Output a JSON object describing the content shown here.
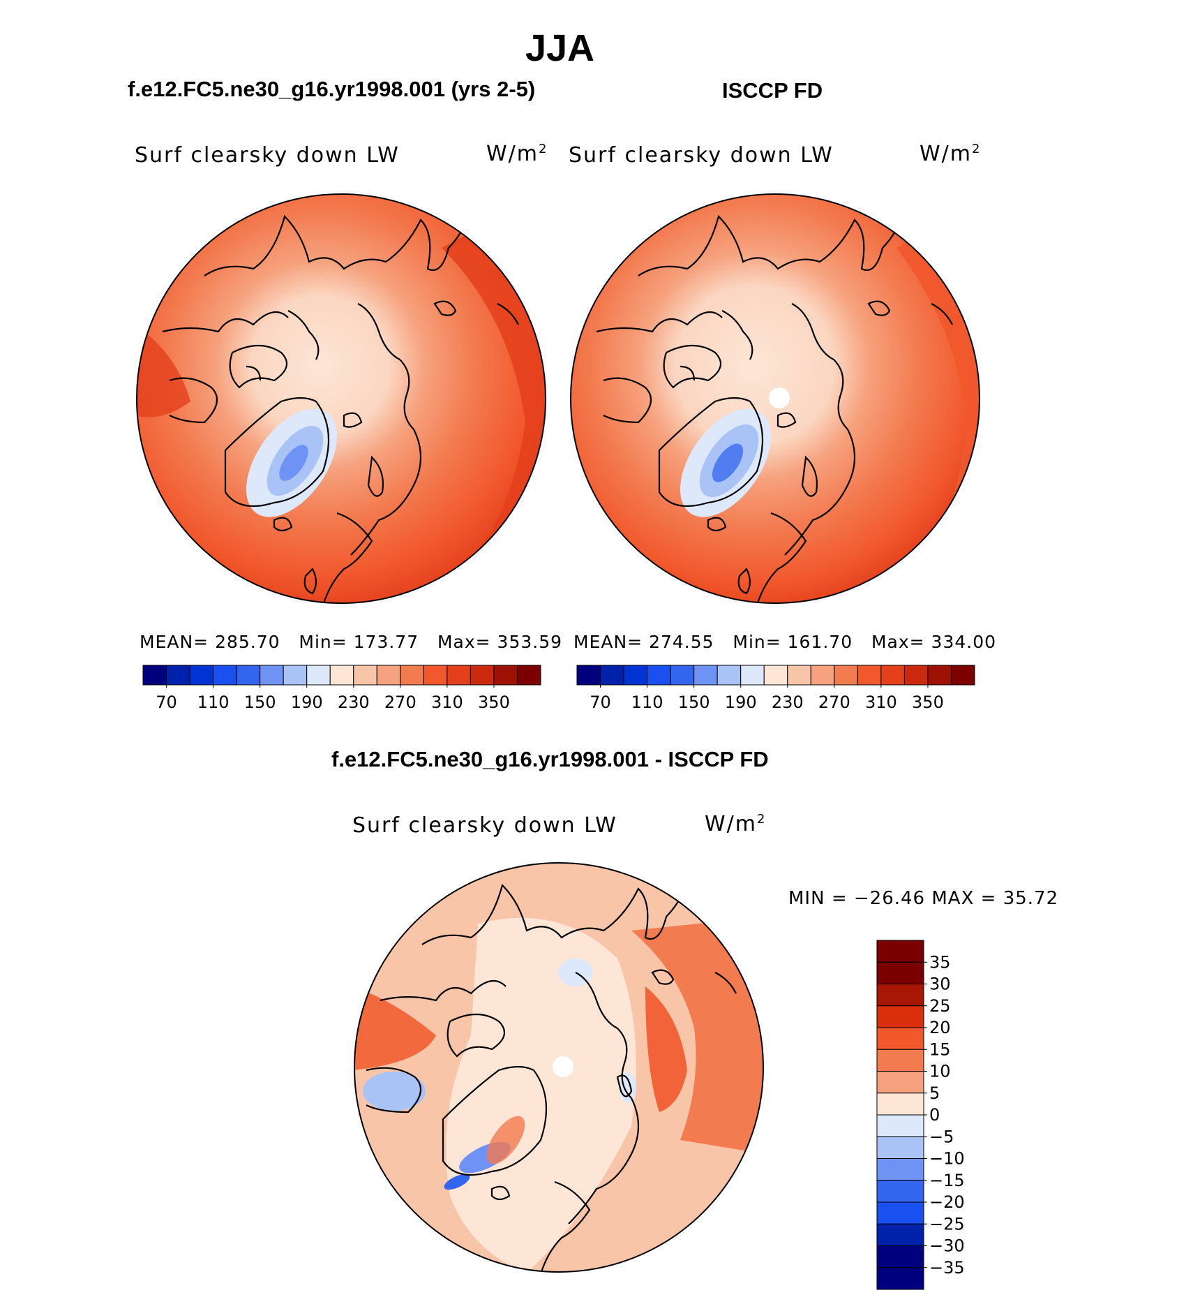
{
  "main_title": "JJA",
  "panels": [
    {
      "title": "f.e12.FC5.ne30_g16.yr1998.001 (yrs 2-5)",
      "variable": "Surf clearsky down LW",
      "units": "W/m2",
      "stats": {
        "mean": "MEAN= 285.70",
        "min": "Min= 173.77",
        "max": "Max= 353.59"
      }
    },
    {
      "title": "ISCCP FD",
      "variable": "Surf clearsky down LW",
      "units": "W/m2",
      "stats": {
        "mean": "MEAN= 274.55",
        "min": "Min= 161.70",
        "max": "Max= 334.00"
      }
    }
  ],
  "diff_panel": {
    "title": "f.e12.FC5.ne30_g16.yr1998.001 - ISCCP FD",
    "variable": "Surf clearsky down LW",
    "units": "W/m2",
    "stats": "MIN = −26.46 MAX =   35.72"
  },
  "colorbar_abs": {
    "colors": [
      "#00007f",
      "#0022aa",
      "#0033d4",
      "#1a4ff0",
      "#3366ee",
      "#6f93f5",
      "#a9c3f7",
      "#dde9fb",
      "#fde6d6",
      "#f9c5a9",
      "#f6a27e",
      "#f37b50",
      "#f1582c",
      "#e4401c",
      "#cc2a0e",
      "#9e1204",
      "#7c0000"
    ],
    "tick_labels": [
      "70",
      "110",
      "150",
      "190",
      "230",
      "270",
      "310",
      "350"
    ]
  },
  "colorbar_diff": {
    "colors": [
      "#7a0000",
      "#a81703",
      "#d92f0b",
      "#f1582c",
      "#f37b50",
      "#f6a27e",
      "#fde6d6",
      "#dde9fb",
      "#a9c3f7",
      "#6f93f5",
      "#3366ee",
      "#1a4ff0",
      "#0022aa",
      "#00007f"
    ],
    "tick_labels": [
      "35",
      "30",
      "25",
      "20",
      "15",
      "10",
      "5",
      "0",
      "−5",
      "−10",
      "−15",
      "−20",
      "−25",
      "−30",
      "−35"
    ]
  },
  "chart_data": [
    {
      "type": "heatmap",
      "title": "f.e12.FC5.ne30_g16.yr1998.001 (yrs 2-5)",
      "variable": "Surf clearsky down LW",
      "units": "W/m2",
      "projection": "north polar stereographic",
      "mean": 285.7,
      "min": 173.77,
      "max": 353.59,
      "contour_levels": [
        70,
        90,
        110,
        130,
        150,
        170,
        190,
        210,
        230,
        250,
        270,
        290,
        310,
        330,
        350
      ]
    },
    {
      "type": "heatmap",
      "title": "ISCCP FD",
      "variable": "Surf clearsky down LW",
      "units": "W/m2",
      "projection": "north polar stereographic",
      "mean": 274.55,
      "min": 161.7,
      "max": 334.0,
      "contour_levels": [
        70,
        90,
        110,
        130,
        150,
        170,
        190,
        210,
        230,
        250,
        270,
        290,
        310,
        330,
        350
      ]
    },
    {
      "type": "heatmap",
      "title": "f.e12.FC5.ne30_g16.yr1998.001 - ISCCP FD",
      "variable": "Surf clearsky down LW",
      "units": "W/m2",
      "projection": "north polar stereographic",
      "min": -26.46,
      "max": 35.72,
      "contour_levels": [
        -35,
        -30,
        -25,
        -20,
        -15,
        -10,
        -5,
        0,
        5,
        10,
        15,
        20,
        25,
        30,
        35
      ]
    }
  ]
}
